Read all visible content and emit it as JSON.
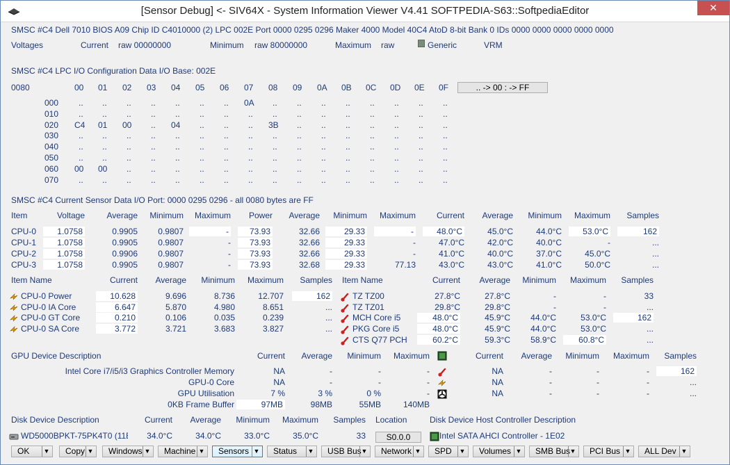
{
  "window": {
    "title": "[Sensor Debug] <- SIV64X - System Information Viewer V4.41 SOFTPEDIA-S63::SoftpediaEditor",
    "close": "✕"
  },
  "info": {
    "line1": "SMSC #C4 Dell 7010 BIOS A09  Chip ID C4010000 (2)  LPC 002E  Port 0000 0295 0296  Maker 4000  Model 40C4  AtoD 8-bit  Bank 0  IDs 0000 0000 0000 0000 0000",
    "volt_label": "Voltages",
    "current": "Current",
    "raw_cur": "raw 00000000",
    "minimum": "Minimum",
    "raw_min": "raw 80000000",
    "maximum": "Maximum",
    "raw_max": "raw",
    "generic": "Generic",
    "vrm": "VRM"
  },
  "lpc": {
    "heading": "SMSC #C4 LPC I/O Configuration Data  I/O Base: 002E",
    "base": "0080",
    "cols": [
      "00",
      "01",
      "02",
      "03",
      "04",
      "05",
      "06",
      "07",
      "08",
      "09",
      "0A",
      "0B",
      "0C",
      "0D",
      "0E",
      "0F"
    ],
    "button": "..  -> 00 :    -> FF",
    "rows": [
      {
        "addr": "000",
        "cells": [
          "..",
          "..",
          "..",
          "..",
          "..",
          "..",
          "..",
          "0A",
          "..",
          "..",
          "..",
          "..",
          "..",
          "..",
          "..",
          ".."
        ]
      },
      {
        "addr": "010",
        "cells": [
          "..",
          "..",
          "..",
          "..",
          "..",
          "..",
          "..",
          "..",
          "..",
          "..",
          "..",
          "..",
          "..",
          "..",
          "..",
          ".."
        ]
      },
      {
        "addr": "020",
        "cells": [
          "C4",
          "01",
          "00",
          "..",
          "04",
          "..",
          "..",
          "..",
          "3B",
          "..",
          "..",
          "..",
          "..",
          "..",
          "..",
          ".."
        ]
      },
      {
        "addr": "030",
        "cells": [
          "..",
          "..",
          "..",
          "..",
          "..",
          "..",
          "..",
          "..",
          "..",
          "..",
          "..",
          "..",
          "..",
          "..",
          "..",
          ".."
        ]
      },
      {
        "addr": "040",
        "cells": [
          "..",
          "..",
          "..",
          "..",
          "..",
          "..",
          "..",
          "..",
          "..",
          "..",
          "..",
          "..",
          "..",
          "..",
          "..",
          ".."
        ]
      },
      {
        "addr": "050",
        "cells": [
          "..",
          "..",
          "..",
          "..",
          "..",
          "..",
          "..",
          "..",
          "..",
          "..",
          "..",
          "..",
          "..",
          "..",
          "..",
          ".."
        ]
      },
      {
        "addr": "060",
        "cells": [
          "00",
          "00",
          "..",
          "..",
          "..",
          "..",
          "..",
          "..",
          "..",
          "..",
          "..",
          "..",
          "..",
          "..",
          "..",
          ".."
        ]
      },
      {
        "addr": "070",
        "cells": [
          "..",
          "..",
          "..",
          "..",
          "..",
          "..",
          "..",
          "..",
          "..",
          "..",
          "..",
          "..",
          "..",
          "..",
          "..",
          ".."
        ]
      }
    ]
  },
  "sensor": {
    "heading": "SMSC #C4 Current Sensor Data  I/O Port: 0000 0295 0296 - all 0080 bytes are FF",
    "headers": [
      "Item",
      "Voltage",
      "Average",
      "Minimum",
      "Maximum",
      "Power",
      "Average",
      "Minimum",
      "Maximum",
      "Current",
      "Average",
      "Minimum",
      "Maximum",
      "Samples"
    ],
    "rows": [
      [
        "CPU-0",
        "1.0758",
        "0.9905",
        "0.9807",
        "-",
        "73.93",
        "32.66",
        "29.33",
        "-",
        "48.0°C",
        "45.0°C",
        "44.0°C",
        "53.0°C",
        "162"
      ],
      [
        "CPU-1",
        "1.0758",
        "0.9905",
        "0.9807",
        "-",
        "73.93",
        "32.66",
        "29.33",
        "-",
        "47.0°C",
        "42.0°C",
        "40.0°C",
        "-",
        "..."
      ],
      [
        "CPU-2",
        "1.0758",
        "0.9906",
        "0.9807",
        "-",
        "73.93",
        "32.66",
        "29.33",
        "-",
        "41.0°C",
        "40.0°C",
        "37.0°C",
        "45.0°C",
        "..."
      ],
      [
        "CPU-3",
        "1.0758",
        "0.9905",
        "0.9807",
        "-",
        "73.93",
        "32.68",
        "29.33",
        "77.13",
        "43.0°C",
        "43.0°C",
        "41.0°C",
        "50.0°C",
        "..."
      ]
    ]
  },
  "power": {
    "headers": [
      "Item Name",
      "Current",
      "Average",
      "Minimum",
      "Maximum",
      "Samples"
    ],
    "rows": [
      [
        "CPU-0 Power",
        "10.628",
        "9.696",
        "8.736",
        "12.707",
        "162"
      ],
      [
        "CPU-0 IA Core",
        "6.647",
        "5.870",
        "4.980",
        "8.651",
        "..."
      ],
      [
        "CPU-0 GT Core",
        "0.210",
        "0.106",
        "0.035",
        "0.239",
        "..."
      ],
      [
        "CPU-0 SA Core",
        "3.772",
        "3.721",
        "3.683",
        "3.827",
        "..."
      ]
    ]
  },
  "temps": {
    "headers": [
      "Item Name",
      "Current",
      "Average",
      "Minimum",
      "Maximum",
      "Samples"
    ],
    "rows": [
      [
        "TZ TZ00",
        "27.8°C",
        "27.8°C",
        "-",
        "-",
        "33"
      ],
      [
        "TZ TZ01",
        "29.8°C",
        "29.8°C",
        "-",
        "-",
        "..."
      ],
      [
        "MCH Core i5",
        "48.0°C",
        "45.9°C",
        "44.0°C",
        "53.0°C",
        "162"
      ],
      [
        "PKG Core i5",
        "48.0°C",
        "45.9°C",
        "44.0°C",
        "53.0°C",
        "..."
      ],
      [
        "CTS Q77 PCH",
        "60.2°C",
        "59.3°C",
        "58.9°C",
        "60.8°C",
        "..."
      ]
    ]
  },
  "gpu": {
    "headers": [
      "GPU Device Description",
      "Current",
      "Average",
      "Minimum",
      "Maximum"
    ],
    "rows": [
      [
        "Intel Core i7/i5/i3 Graphics Controller Memory",
        "NA",
        "-",
        "-",
        "-"
      ],
      [
        "GPU-0 Core",
        "NA",
        "-",
        "-",
        "-"
      ],
      [
        "GPU Utilisation",
        "7 %",
        "3 %",
        "0 %",
        "-"
      ],
      [
        "0KB Frame Buffer",
        "97MB",
        "98MB",
        "55MB",
        "140MB"
      ]
    ],
    "headers2": [
      "Current",
      "Average",
      "Minimum",
      "Maximum",
      "Samples"
    ],
    "rows2": [
      [
        "NA",
        "-",
        "-",
        "-",
        "162"
      ],
      [
        "NA",
        "-",
        "-",
        "-",
        "..."
      ],
      [
        "NA",
        "-",
        "-",
        "-",
        "..."
      ]
    ]
  },
  "disk": {
    "headers": [
      "Disk Device Description",
      "Current",
      "Average",
      "Minimum",
      "Maximum",
      "Samples",
      "Location",
      "Disk Device Host Controller Description"
    ],
    "row": [
      "WD5000BPKT-75PK4T0 (11E",
      "34.0°C",
      "34.0°C",
      "33.0°C",
      "35.0°C",
      "33",
      "S0.0.0",
      "Intel SATA AHCI Controller - 1E02"
    ]
  },
  "toolbar": [
    "OK",
    "Copy",
    "Windows",
    "Machine",
    "Sensors",
    "Status",
    "USB Bus",
    "Network",
    "SPD",
    "Volumes",
    "SMB Bus",
    "PCI Bus",
    "ALL Dev"
  ],
  "colors": {
    "text": "#1e3a78",
    "close": "#c75050",
    "window_bg": "#f0f0f0"
  }
}
